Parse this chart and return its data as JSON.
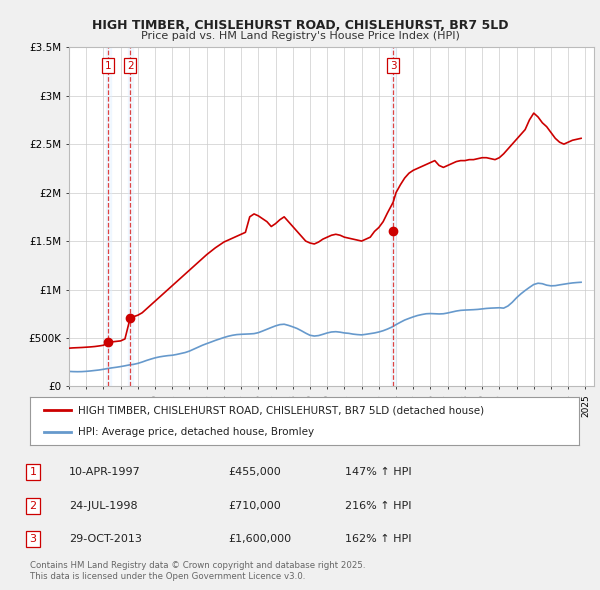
{
  "title": "HIGH TIMBER, CHISLEHURST ROAD, CHISLEHURST, BR7 5LD",
  "subtitle": "Price paid vs. HM Land Registry's House Price Index (HPI)",
  "legend_line1": "HIGH TIMBER, CHISLEHURST ROAD, CHISLEHURST, BR7 5LD (detached house)",
  "legend_line2": "HPI: Average price, detached house, Bromley",
  "footnote": "Contains HM Land Registry data © Crown copyright and database right 2025.\nThis data is licensed under the Open Government Licence v3.0.",
  "transactions": [
    {
      "num": 1,
      "date": "10-APR-1997",
      "price": 455000,
      "hpi_pct": "147%",
      "arrow": "↑",
      "year": 1997.28
    },
    {
      "num": 2,
      "date": "24-JUL-1998",
      "price": 710000,
      "hpi_pct": "216%",
      "arrow": "↑",
      "year": 1998.56
    },
    {
      "num": 3,
      "date": "29-OCT-2013",
      "price": 1600000,
      "hpi_pct": "162%",
      "arrow": "↑",
      "year": 2013.83
    }
  ],
  "hpi_data": {
    "years": [
      1995.0,
      1995.25,
      1995.5,
      1995.75,
      1996.0,
      1996.25,
      1996.5,
      1996.75,
      1997.0,
      1997.25,
      1997.5,
      1997.75,
      1998.0,
      1998.25,
      1998.5,
      1998.75,
      1999.0,
      1999.25,
      1999.5,
      1999.75,
      2000.0,
      2000.25,
      2000.5,
      2000.75,
      2001.0,
      2001.25,
      2001.5,
      2001.75,
      2002.0,
      2002.25,
      2002.5,
      2002.75,
      2003.0,
      2003.25,
      2003.5,
      2003.75,
      2004.0,
      2004.25,
      2004.5,
      2004.75,
      2005.0,
      2005.25,
      2005.5,
      2005.75,
      2006.0,
      2006.25,
      2006.5,
      2006.75,
      2007.0,
      2007.25,
      2007.5,
      2007.75,
      2008.0,
      2008.25,
      2008.5,
      2008.75,
      2009.0,
      2009.25,
      2009.5,
      2009.75,
      2010.0,
      2010.25,
      2010.5,
      2010.75,
      2011.0,
      2011.25,
      2011.5,
      2011.75,
      2012.0,
      2012.25,
      2012.5,
      2012.75,
      2013.0,
      2013.25,
      2013.5,
      2013.75,
      2014.0,
      2014.25,
      2014.5,
      2014.75,
      2015.0,
      2015.25,
      2015.5,
      2015.75,
      2016.0,
      2016.25,
      2016.5,
      2016.75,
      2017.0,
      2017.25,
      2017.5,
      2017.75,
      2018.0,
      2018.25,
      2018.5,
      2018.75,
      2019.0,
      2019.25,
      2019.5,
      2019.75,
      2020.0,
      2020.25,
      2020.5,
      2020.75,
      2021.0,
      2021.25,
      2021.5,
      2021.75,
      2022.0,
      2022.25,
      2022.5,
      2022.75,
      2023.0,
      2023.25,
      2023.5,
      2023.75,
      2024.0,
      2024.25,
      2024.5,
      2024.75
    ],
    "values": [
      155000,
      153000,
      152000,
      153000,
      156000,
      160000,
      165000,
      170000,
      177000,
      185000,
      192000,
      198000,
      205000,
      213000,
      222000,
      228000,
      238000,
      252000,
      268000,
      282000,
      295000,
      305000,
      312000,
      318000,
      322000,
      330000,
      340000,
      350000,
      365000,
      385000,
      405000,
      425000,
      442000,
      458000,
      475000,
      490000,
      505000,
      518000,
      528000,
      535000,
      538000,
      540000,
      542000,
      545000,
      555000,
      572000,
      590000,
      608000,
      625000,
      638000,
      642000,
      630000,
      615000,
      598000,
      575000,
      550000,
      528000,
      520000,
      525000,
      538000,
      552000,
      562000,
      565000,
      560000,
      552000,
      548000,
      540000,
      535000,
      532000,
      538000,
      545000,
      552000,
      562000,
      575000,
      592000,
      612000,
      638000,
      662000,
      685000,
      702000,
      718000,
      732000,
      742000,
      750000,
      752000,
      750000,
      748000,
      750000,
      758000,
      768000,
      778000,
      785000,
      788000,
      790000,
      792000,
      795000,
      800000,
      805000,
      808000,
      810000,
      812000,
      808000,
      830000,
      868000,
      915000,
      955000,
      990000,
      1022000,
      1052000,
      1065000,
      1060000,
      1045000,
      1038000,
      1040000,
      1048000,
      1055000,
      1062000,
      1068000,
      1072000,
      1075000
    ]
  },
  "price_data": {
    "years": [
      1995.0,
      1995.25,
      1995.5,
      1995.75,
      1996.0,
      1996.25,
      1996.5,
      1996.75,
      1997.0,
      1997.28,
      1997.5,
      1997.75,
      1998.0,
      1998.25,
      1998.56,
      1998.75,
      1999.0,
      1999.25,
      1999.5,
      1999.75,
      2000.0,
      2000.25,
      2000.5,
      2000.75,
      2001.0,
      2001.25,
      2001.5,
      2001.75,
      2002.0,
      2002.25,
      2002.5,
      2002.75,
      2003.0,
      2003.25,
      2003.5,
      2003.75,
      2004.0,
      2004.25,
      2004.5,
      2004.75,
      2005.0,
      2005.25,
      2005.5,
      2005.75,
      2006.0,
      2006.25,
      2006.5,
      2006.75,
      2007.0,
      2007.25,
      2007.5,
      2007.75,
      2008.0,
      2008.25,
      2008.5,
      2008.75,
      2009.0,
      2009.25,
      2009.5,
      2009.75,
      2010.0,
      2010.25,
      2010.5,
      2010.75,
      2011.0,
      2011.25,
      2011.5,
      2011.75,
      2012.0,
      2012.25,
      2012.5,
      2012.75,
      2013.0,
      2013.25,
      2013.5,
      2013.83,
      2014.0,
      2014.25,
      2014.5,
      2014.75,
      2015.0,
      2015.25,
      2015.5,
      2015.75,
      2016.0,
      2016.25,
      2016.5,
      2016.75,
      2017.0,
      2017.25,
      2017.5,
      2017.75,
      2018.0,
      2018.25,
      2018.5,
      2018.75,
      2019.0,
      2019.25,
      2019.5,
      2019.75,
      2020.0,
      2020.25,
      2020.5,
      2020.75,
      2021.0,
      2021.25,
      2021.5,
      2021.75,
      2022.0,
      2022.25,
      2022.5,
      2022.75,
      2023.0,
      2023.25,
      2023.5,
      2023.75,
      2024.0,
      2024.25,
      2024.5,
      2024.75
    ],
    "values": [
      395000,
      398000,
      400000,
      402000,
      405000,
      408000,
      412000,
      418000,
      425000,
      455000,
      460000,
      465000,
      470000,
      490000,
      710000,
      720000,
      735000,
      760000,
      800000,
      840000,
      880000,
      920000,
      960000,
      1000000,
      1040000,
      1080000,
      1120000,
      1160000,
      1200000,
      1240000,
      1280000,
      1320000,
      1360000,
      1395000,
      1430000,
      1460000,
      1490000,
      1510000,
      1530000,
      1550000,
      1570000,
      1590000,
      1750000,
      1780000,
      1760000,
      1730000,
      1700000,
      1650000,
      1680000,
      1720000,
      1750000,
      1700000,
      1650000,
      1600000,
      1550000,
      1500000,
      1480000,
      1470000,
      1490000,
      1520000,
      1540000,
      1560000,
      1570000,
      1560000,
      1540000,
      1530000,
      1520000,
      1510000,
      1500000,
      1520000,
      1540000,
      1600000,
      1640000,
      1700000,
      1790000,
      1900000,
      2000000,
      2080000,
      2150000,
      2200000,
      2230000,
      2250000,
      2270000,
      2290000,
      2310000,
      2330000,
      2280000,
      2260000,
      2280000,
      2300000,
      2320000,
      2330000,
      2330000,
      2340000,
      2340000,
      2350000,
      2360000,
      2360000,
      2350000,
      2340000,
      2360000,
      2400000,
      2450000,
      2500000,
      2550000,
      2600000,
      2650000,
      2750000,
      2820000,
      2780000,
      2720000,
      2680000,
      2620000,
      2560000,
      2520000,
      2500000,
      2520000,
      2540000,
      2550000,
      2560000
    ]
  },
  "ylim": [
    0,
    3500000
  ],
  "xlim": [
    1995,
    2025.5
  ],
  "yticks": [
    0,
    500000,
    1000000,
    1500000,
    2000000,
    2500000,
    3000000,
    3500000
  ],
  "ytick_labels": [
    "£0",
    "£500K",
    "£1M",
    "£1.5M",
    "£2M",
    "£2.5M",
    "£3M",
    "£3.5M"
  ],
  "xticks": [
    1995,
    1996,
    1997,
    1998,
    1999,
    2000,
    2001,
    2002,
    2003,
    2004,
    2005,
    2006,
    2007,
    2008,
    2009,
    2010,
    2011,
    2012,
    2013,
    2014,
    2015,
    2016,
    2017,
    2018,
    2019,
    2020,
    2021,
    2022,
    2023,
    2024,
    2025
  ],
  "bg_color": "#f0f0f0",
  "plot_bg": "#ffffff",
  "red_color": "#cc0000",
  "blue_color": "#6699cc",
  "grid_color": "#cccccc",
  "vline_color": "#dd4444",
  "vshade_color": "#ddeeff"
}
